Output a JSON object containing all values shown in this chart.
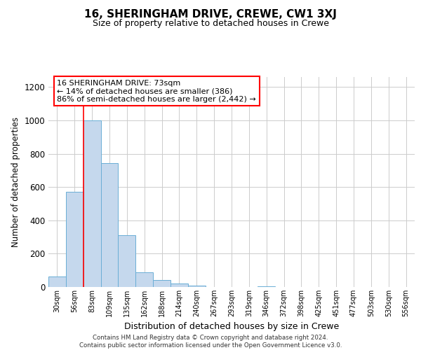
{
  "title": "16, SHERINGHAM DRIVE, CREWE, CW1 3XJ",
  "subtitle": "Size of property relative to detached houses in Crewe",
  "xlabel": "Distribution of detached houses by size in Crewe",
  "ylabel": "Number of detached properties",
  "bar_color": "#c5d8ed",
  "bar_edge_color": "#6aaed6",
  "bin_labels": [
    "30sqm",
    "56sqm",
    "83sqm",
    "109sqm",
    "135sqm",
    "162sqm",
    "188sqm",
    "214sqm",
    "240sqm",
    "267sqm",
    "293sqm",
    "319sqm",
    "346sqm",
    "372sqm",
    "398sqm",
    "425sqm",
    "451sqm",
    "477sqm",
    "503sqm",
    "530sqm",
    "556sqm"
  ],
  "bar_heights": [
    65,
    570,
    1000,
    745,
    310,
    90,
    40,
    20,
    10,
    0,
    0,
    0,
    5,
    0,
    0,
    0,
    0,
    0,
    0,
    0,
    0
  ],
  "ylim": [
    0,
    1260
  ],
  "yticks": [
    0,
    200,
    400,
    600,
    800,
    1000,
    1200
  ],
  "annotation_title": "16 SHERINGHAM DRIVE: 73sqm",
  "annotation_line1": "← 14% of detached houses are smaller (386)",
  "annotation_line2": "86% of semi-detached houses are larger (2,442) →",
  "footer1": "Contains HM Land Registry data © Crown copyright and database right 2024.",
  "footer2": "Contains public sector information licensed under the Open Government Licence v3.0.",
  "background_color": "#ffffff",
  "grid_color": "#cccccc"
}
